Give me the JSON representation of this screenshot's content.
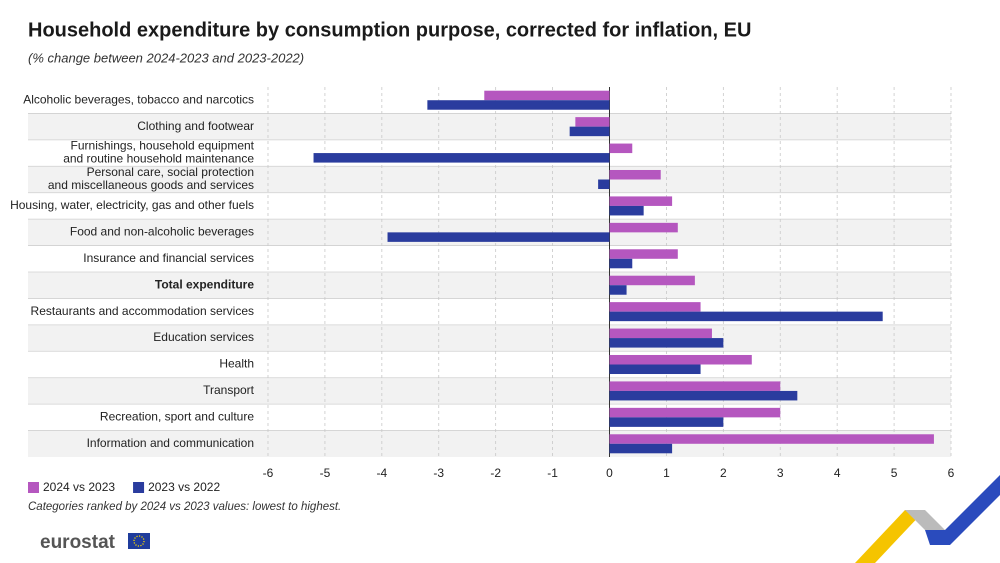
{
  "chart_data": {
    "type": "hbar",
    "title": "Household expenditure by consumption purpose, corrected for inflation, EU",
    "subtitle": "(% change between 2024-2023 and 2023-2022)",
    "categories": [
      "Alcoholic beverages, tobacco and narcotics",
      "Clothing and footwear",
      "Furnishings, household equipment\nand routine household maintenance",
      "Personal care, social protection\nand miscellaneous goods and services",
      "Housing, water, electricity, gas and other fuels",
      "Food and non-alcoholic beverages",
      "Insurance and financial services",
      "Total expenditure",
      "Restaurants and accommodation services",
      "Education services",
      "Health",
      "Transport",
      "Recreation, sport and culture",
      "Information and communication"
    ],
    "series": [
      {
        "name": "2024 vs 2023",
        "color": "#b557bf",
        "values": [
          -2.2,
          -0.6,
          0.4,
          0.9,
          1.1,
          1.2,
          1.2,
          1.5,
          1.6,
          1.8,
          2.5,
          3.0,
          3.0,
          5.7
        ]
      },
      {
        "name": "2023 vs 2022",
        "color": "#2a3c9e",
        "values": [
          -3.2,
          -0.7,
          -5.2,
          -0.2,
          0.6,
          -3.9,
          0.4,
          0.3,
          4.8,
          2.0,
          1.6,
          3.3,
          2.0,
          1.1
        ]
      }
    ],
    "xlim": [
      -6,
      6
    ],
    "xticks": [
      -6,
      -5,
      -4,
      -3,
      -2,
      -1,
      0,
      1,
      2,
      3,
      4,
      5,
      6
    ],
    "grid": true,
    "note": "Categories ranked by 2024 vs 2023 values: lowest to highest.",
    "source_logo": "eurostat"
  }
}
